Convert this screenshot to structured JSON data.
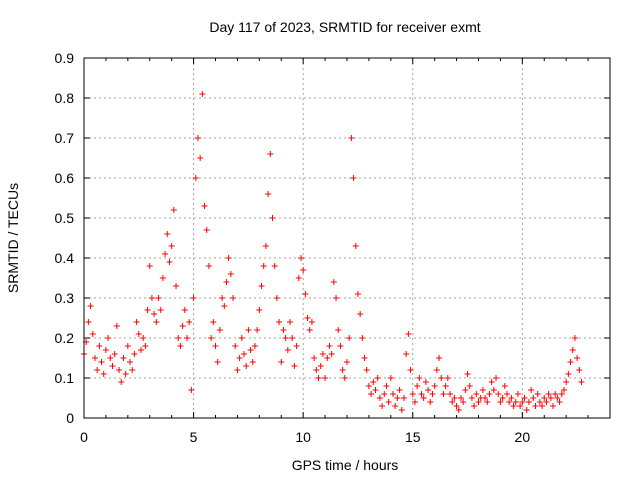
{
  "chart_data": {
    "type": "scatter",
    "title": "Day 117 of 2023, SRMTID for receiver exmt",
    "xlabel": "GPS time / hours",
    "ylabel": "SRMTID / TECUs",
    "xlim": [
      0,
      24
    ],
    "ylim": [
      0,
      0.9
    ],
    "xticks": [
      "0",
      "5",
      "10",
      "15",
      "20"
    ],
    "yticks": [
      "0",
      "0.1",
      "0.2",
      "0.3",
      "0.4",
      "0.5",
      "0.6",
      "0.7",
      "0.8",
      "0.9"
    ],
    "grid": true,
    "marker": "+",
    "color": "#ff0000",
    "series": [
      {
        "name": "SRMTID",
        "x": [
          0.0,
          0.1,
          0.2,
          0.3,
          0.4,
          0.5,
          0.6,
          0.7,
          0.8,
          0.9,
          1.0,
          1.1,
          1.2,
          1.3,
          1.4,
          1.5,
          1.6,
          1.7,
          1.8,
          1.9,
          2.0,
          2.1,
          2.2,
          2.3,
          2.4,
          2.5,
          2.6,
          2.7,
          2.8,
          2.9,
          3.0,
          3.1,
          3.2,
          3.3,
          3.4,
          3.5,
          3.6,
          3.7,
          3.8,
          3.9,
          4.0,
          4.1,
          4.2,
          4.3,
          4.4,
          4.5,
          4.6,
          4.7,
          4.8,
          4.9,
          5.0,
          5.1,
          5.2,
          5.3,
          5.4,
          5.5,
          5.6,
          5.7,
          5.8,
          5.9,
          6.0,
          6.1,
          6.2,
          6.3,
          6.4,
          6.5,
          6.6,
          6.7,
          6.8,
          6.9,
          7.0,
          7.1,
          7.2,
          7.3,
          7.4,
          7.5,
          7.6,
          7.7,
          7.8,
          7.9,
          8.0,
          8.1,
          8.2,
          8.3,
          8.4,
          8.5,
          8.6,
          8.7,
          8.8,
          8.9,
          9.0,
          9.1,
          9.2,
          9.3,
          9.4,
          9.5,
          9.6,
          9.7,
          9.8,
          9.9,
          10.0,
          10.1,
          10.2,
          10.3,
          10.4,
          10.5,
          10.6,
          10.7,
          10.8,
          10.9,
          11.0,
          11.1,
          11.2,
          11.3,
          11.4,
          11.5,
          11.6,
          11.7,
          11.8,
          11.9,
          12.0,
          12.1,
          12.2,
          12.3,
          12.4,
          12.5,
          12.6,
          12.7,
          12.8,
          12.9,
          13.0,
          13.1,
          13.2,
          13.3,
          13.4,
          13.5,
          13.6,
          13.7,
          13.8,
          13.9,
          14.0,
          14.1,
          14.2,
          14.3,
          14.4,
          14.5,
          14.6,
          14.7,
          14.8,
          14.9,
          15.0,
          15.1,
          15.2,
          15.3,
          15.4,
          15.5,
          15.6,
          15.7,
          15.8,
          15.9,
          16.0,
          16.1,
          16.2,
          16.3,
          16.4,
          16.5,
          16.6,
          16.7,
          16.8,
          16.9,
          17.0,
          17.1,
          17.2,
          17.3,
          17.4,
          17.5,
          17.6,
          17.7,
          17.8,
          17.9,
          18.0,
          18.1,
          18.2,
          18.3,
          18.4,
          18.5,
          18.6,
          18.7,
          18.8,
          18.9,
          19.0,
          19.1,
          19.2,
          19.3,
          19.4,
          19.5,
          19.6,
          19.7,
          19.8,
          19.9,
          20.0,
          20.1,
          20.2,
          20.3,
          20.4,
          20.5,
          20.6,
          20.7,
          20.8,
          20.9,
          21.0,
          21.1,
          21.2,
          21.3,
          21.4,
          21.5,
          21.6,
          21.7,
          21.8,
          21.9,
          22.0,
          22.1,
          22.2,
          22.3,
          22.4,
          22.5,
          22.6,
          22.7
        ],
        "y": [
          0.16,
          0.19,
          0.24,
          0.28,
          0.21,
          0.15,
          0.12,
          0.18,
          0.14,
          0.11,
          0.17,
          0.2,
          0.15,
          0.13,
          0.16,
          0.23,
          0.12,
          0.09,
          0.15,
          0.11,
          0.18,
          0.14,
          0.12,
          0.16,
          0.24,
          0.21,
          0.17,
          0.2,
          0.18,
          0.27,
          0.38,
          0.3,
          0.26,
          0.24,
          0.3,
          0.27,
          0.35,
          0.41,
          0.46,
          0.39,
          0.43,
          0.52,
          0.33,
          0.2,
          0.18,
          0.23,
          0.27,
          0.2,
          0.24,
          0.07,
          0.3,
          0.6,
          0.7,
          0.65,
          0.81,
          0.53,
          0.47,
          0.38,
          0.2,
          0.24,
          0.18,
          0.14,
          0.22,
          0.3,
          0.28,
          0.34,
          0.4,
          0.36,
          0.3,
          0.18,
          0.12,
          0.15,
          0.2,
          0.16,
          0.13,
          0.22,
          0.17,
          0.14,
          0.18,
          0.22,
          0.27,
          0.33,
          0.38,
          0.43,
          0.56,
          0.66,
          0.5,
          0.38,
          0.3,
          0.24,
          0.14,
          0.22,
          0.2,
          0.17,
          0.24,
          0.2,
          0.13,
          0.18,
          0.35,
          0.4,
          0.37,
          0.31,
          0.25,
          0.22,
          0.24,
          0.15,
          0.12,
          0.1,
          0.13,
          0.16,
          0.1,
          0.15,
          0.18,
          0.16,
          0.34,
          0.3,
          0.22,
          0.18,
          0.12,
          0.1,
          0.14,
          0.2,
          0.7,
          0.6,
          0.43,
          0.31,
          0.26,
          0.2,
          0.15,
          0.12,
          0.08,
          0.06,
          0.09,
          0.07,
          0.1,
          0.05,
          0.03,
          0.06,
          0.08,
          0.04,
          0.1,
          0.06,
          0.03,
          0.05,
          0.07,
          0.02,
          0.05,
          0.16,
          0.21,
          0.12,
          0.06,
          0.04,
          0.08,
          0.1,
          0.06,
          0.05,
          0.09,
          0.07,
          0.04,
          0.06,
          0.08,
          0.12,
          0.15,
          0.1,
          0.06,
          0.08,
          0.1,
          0.06,
          0.04,
          0.05,
          0.03,
          0.02,
          0.05,
          0.04,
          0.07,
          0.11,
          0.08,
          0.05,
          0.03,
          0.06,
          0.04,
          0.05,
          0.07,
          0.05,
          0.04,
          0.06,
          0.09,
          0.07,
          0.1,
          0.06,
          0.04,
          0.05,
          0.08,
          0.06,
          0.04,
          0.05,
          0.03,
          0.04,
          0.06,
          0.03,
          0.04,
          0.05,
          0.02,
          0.04,
          0.07,
          0.05,
          0.03,
          0.06,
          0.04,
          0.03,
          0.05,
          0.04,
          0.06,
          0.05,
          0.03,
          0.06,
          0.05,
          0.04,
          0.06,
          0.07,
          0.09,
          0.11,
          0.14,
          0.17,
          0.2,
          0.15,
          0.12,
          0.09
        ]
      }
    ]
  }
}
